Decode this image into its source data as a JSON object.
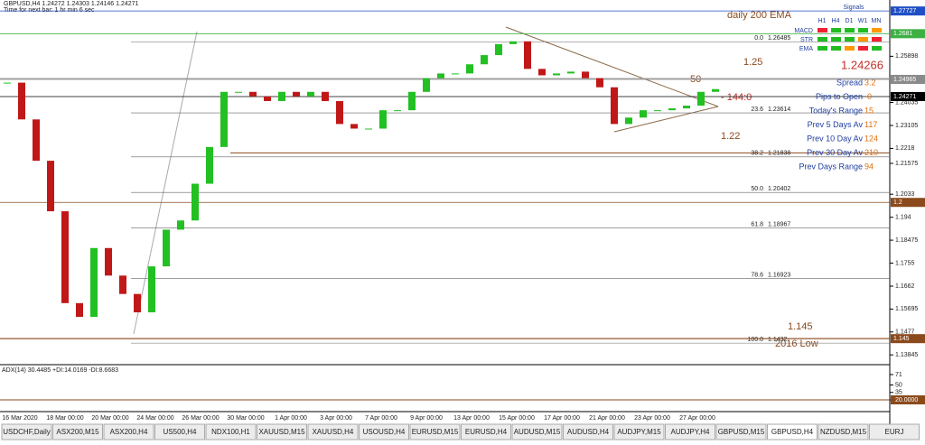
{
  "header": {
    "symbol": "GBPUSD,H4  1.24272 1.24303 1.24146 1.24271",
    "timer": "Time for next bar: 1 hr min 6 sec"
  },
  "price": {
    "ylim": [
      1.1345,
      1.2817
    ],
    "closes": [
      1.24833,
      1.2335,
      1.21681,
      1.19642,
      1.15934,
      1.15377,
      1.18158,
      1.17046,
      1.16304,
      1.15563,
      1.17417,
      1.189,
      1.19271,
      1.20754,
      1.22237,
      1.24462,
      1.24462,
      1.24277,
      1.24091,
      1.24462,
      1.24277,
      1.24462,
      1.24091,
      1.23164,
      1.22979,
      1.22979,
      1.2372,
      1.2372,
      1.24462,
      1.25018,
      1.25204,
      1.25204,
      1.25574,
      1.25945,
      1.2639,
      1.26501,
      1.25389,
      1.25129,
      1.25204,
      1.25278,
      1.25018,
      1.24647,
      1.23164,
      1.23424,
      1.2372,
      1.2372,
      1.23795,
      1.23906,
      1.24462,
      1.24573
    ],
    "ticks": [
      1.25898,
      1.24035,
      1.23105,
      1.2218,
      1.21575,
      1.2033,
      1.194,
      1.18475,
      1.1755,
      1.1662,
      1.15695,
      1.1477,
      1.13845
    ],
    "tags": [
      {
        "value": 1.27727,
        "color": "#1f4fc4"
      },
      {
        "value": 1.2681,
        "color": "#3cb043"
      },
      {
        "value": 1.24965,
        "color": "#8a8a8a"
      },
      {
        "value": 1.24271,
        "color": "#000000"
      },
      {
        "value": 1.2,
        "color": "#8b4a1c"
      },
      {
        "value": 1.145,
        "color": "#8b4a1c"
      }
    ]
  },
  "fib": [
    {
      "level": "0.0",
      "price": 1.26485
    },
    {
      "level": "23.6",
      "price": 1.23614
    },
    {
      "level": "38.2",
      "price": 1.21838
    },
    {
      "level": "50.0",
      "price": 1.20402
    },
    {
      "level": "61.8",
      "price": 1.18967
    },
    {
      "level": "78.6",
      "price": 1.16923
    },
    {
      "level": "100.0",
      "price": 1.1432
    }
  ],
  "annotations": {
    "ema": "daily 200 EMA",
    "level_a": "1.25",
    "level_b": "1.22",
    "level_c": "1.145",
    "low": "2016 Low",
    "fifty": "50",
    "pips": "- 144:0",
    "current": "1.24266"
  },
  "signals": {
    "title": "Signals",
    "columns": [
      "H1",
      "H4",
      "D1",
      "W1",
      "MN"
    ],
    "rows": [
      "MACD",
      "STR",
      "EMA"
    ]
  },
  "info": [
    {
      "label": "Spread",
      "value": "3.2"
    },
    {
      "label": "Pips to Open",
      "value": "-0"
    },
    {
      "label": "Today's Range",
      "value": "15"
    },
    {
      "label": "Prev 5 Days Av",
      "value": "117"
    },
    {
      "label": "Prev 10 Day Av",
      "value": "124"
    },
    {
      "label": "Prev 30 Day Av",
      "value": "210"
    },
    {
      "label": "Prev Days Range",
      "value": "94"
    }
  ],
  "adx": {
    "title": "ADX(14) 30.4485 +DI:14.0169 -DI:8.6683",
    "ylim": [
      0,
      80
    ],
    "ticks": [
      71,
      50,
      35,
      {
        "value": 20,
        "label": "20.0000"
      }
    ]
  },
  "dates": [
    "16 Mar 2020",
    "18 Mar 00:00",
    "20 Mar 00:00",
    "24 Mar 00:00",
    "26 Mar 00:00",
    "30 Mar 00:00",
    "1 Apr 00:00",
    "3 Apr 00:00",
    "7 Apr 00:00",
    "9 Apr 00:00",
    "13 Apr 00:00",
    "15 Apr 00:00",
    "17 Apr 00:00",
    "21 Apr 00:00",
    "23 Apr 00:00",
    "27 Apr 00:00"
  ],
  "tabs": [
    "USDCHF,Daily",
    "ASX200,M15",
    "ASX200,H4",
    "US500,H4",
    "NDX100,H1",
    "XAUUSD,M15",
    "XAUUSD,H4",
    "USOUSD,H4",
    "EURUSD,M15",
    "EURUSD,H4",
    "AUDUSD,M15",
    "AUDUSD,H4",
    "AUDJPY,M15",
    "AUDJPY,H4",
    "GBPUSD,M15",
    "GBPUSD,H4",
    "NZDUSD,M15",
    "EURJ"
  ],
  "active_tab": 15
}
